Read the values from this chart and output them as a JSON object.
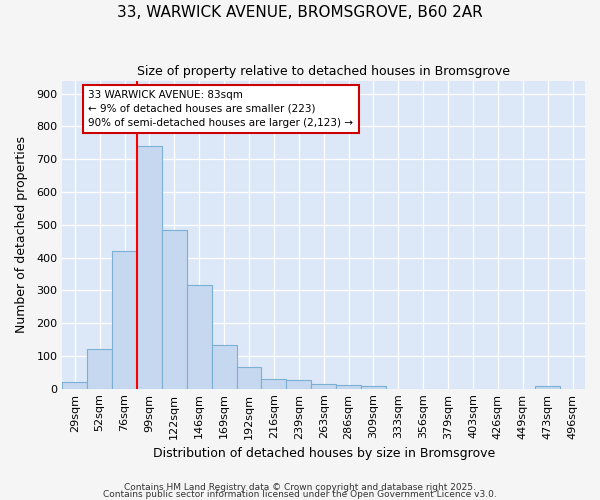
{
  "title1": "33, WARWICK AVENUE, BROMSGROVE, B60 2AR",
  "title2": "Size of property relative to detached houses in Bromsgrove",
  "xlabel": "Distribution of detached houses by size in Bromsgrove",
  "ylabel": "Number of detached properties",
  "categories": [
    "29sqm",
    "52sqm",
    "76sqm",
    "99sqm",
    "122sqm",
    "146sqm",
    "169sqm",
    "192sqm",
    "216sqm",
    "239sqm",
    "263sqm",
    "286sqm",
    "309sqm",
    "333sqm",
    "356sqm",
    "379sqm",
    "403sqm",
    "426sqm",
    "449sqm",
    "473sqm",
    "496sqm"
  ],
  "values": [
    20,
    120,
    420,
    740,
    485,
    315,
    133,
    65,
    30,
    25,
    15,
    10,
    8,
    0,
    0,
    0,
    0,
    0,
    0,
    8,
    0
  ],
  "bar_color": "#c5d8f0",
  "bar_edge_color": "#7bafd4",
  "red_line_x": 2.5,
  "annotation_text": "33 WARWICK AVENUE: 83sqm\n← 9% of detached houses are smaller (223)\n90% of semi-detached houses are larger (2,123) →",
  "annotation_box_color": "#ffffff",
  "annotation_border_color": "#cc0000",
  "figure_bg_color": "#f5f5f5",
  "plot_bg_color": "#dce8f8",
  "ylim": [
    0,
    940
  ],
  "yticks": [
    0,
    100,
    200,
    300,
    400,
    500,
    600,
    700,
    800,
    900
  ],
  "footer1": "Contains HM Land Registry data © Crown copyright and database right 2025.",
  "footer2": "Contains public sector information licensed under the Open Government Licence v3.0.",
  "title_fontsize": 11,
  "subtitle_fontsize": 9,
  "axis_label_fontsize": 9,
  "tick_fontsize": 8,
  "annot_fontsize": 7.5,
  "footer_fontsize": 6.5
}
